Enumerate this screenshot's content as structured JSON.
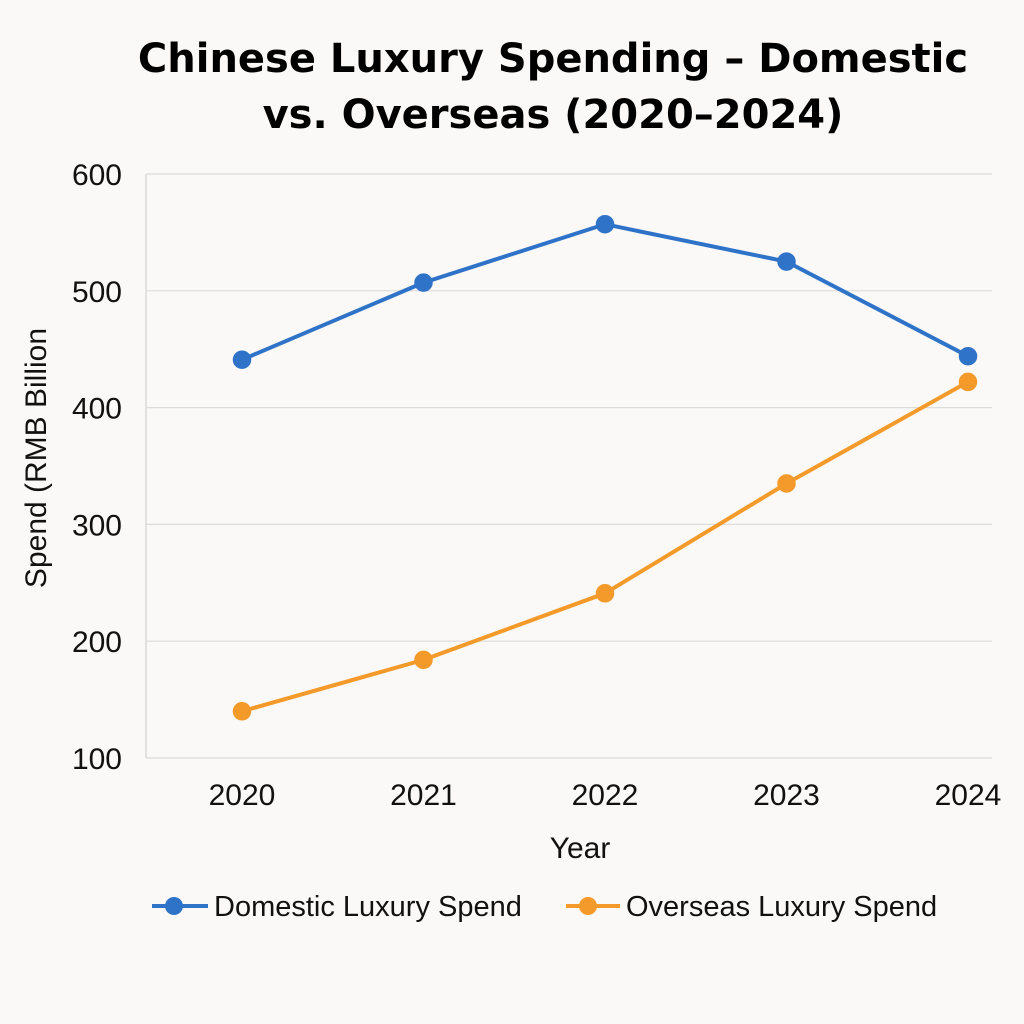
{
  "chart_data": {
    "type": "line",
    "title_lines": [
      "Chinese Luxury Spending – Domestic",
      "vs. Overseas (2020–2024)"
    ],
    "xlabel": "Year",
    "ylabel": "Spend (RMB Billion",
    "x": [
      "2020",
      "2021",
      "2022",
      "2023",
      "2024"
    ],
    "ylim": [
      100,
      600
    ],
    "yticks": [
      "100",
      "200",
      "300",
      "400",
      "500",
      "600"
    ],
    "grid": true,
    "legend_position": "bottom",
    "series": [
      {
        "name": "Domestic Luxury Spend",
        "color": "#2f73c9",
        "values": [
          441,
          507,
          557,
          525,
          444
        ]
      },
      {
        "name": "Overseas Luxury Spend",
        "color": "#f39a2a",
        "values": [
          140,
          184,
          241,
          335,
          422
        ]
      }
    ]
  }
}
